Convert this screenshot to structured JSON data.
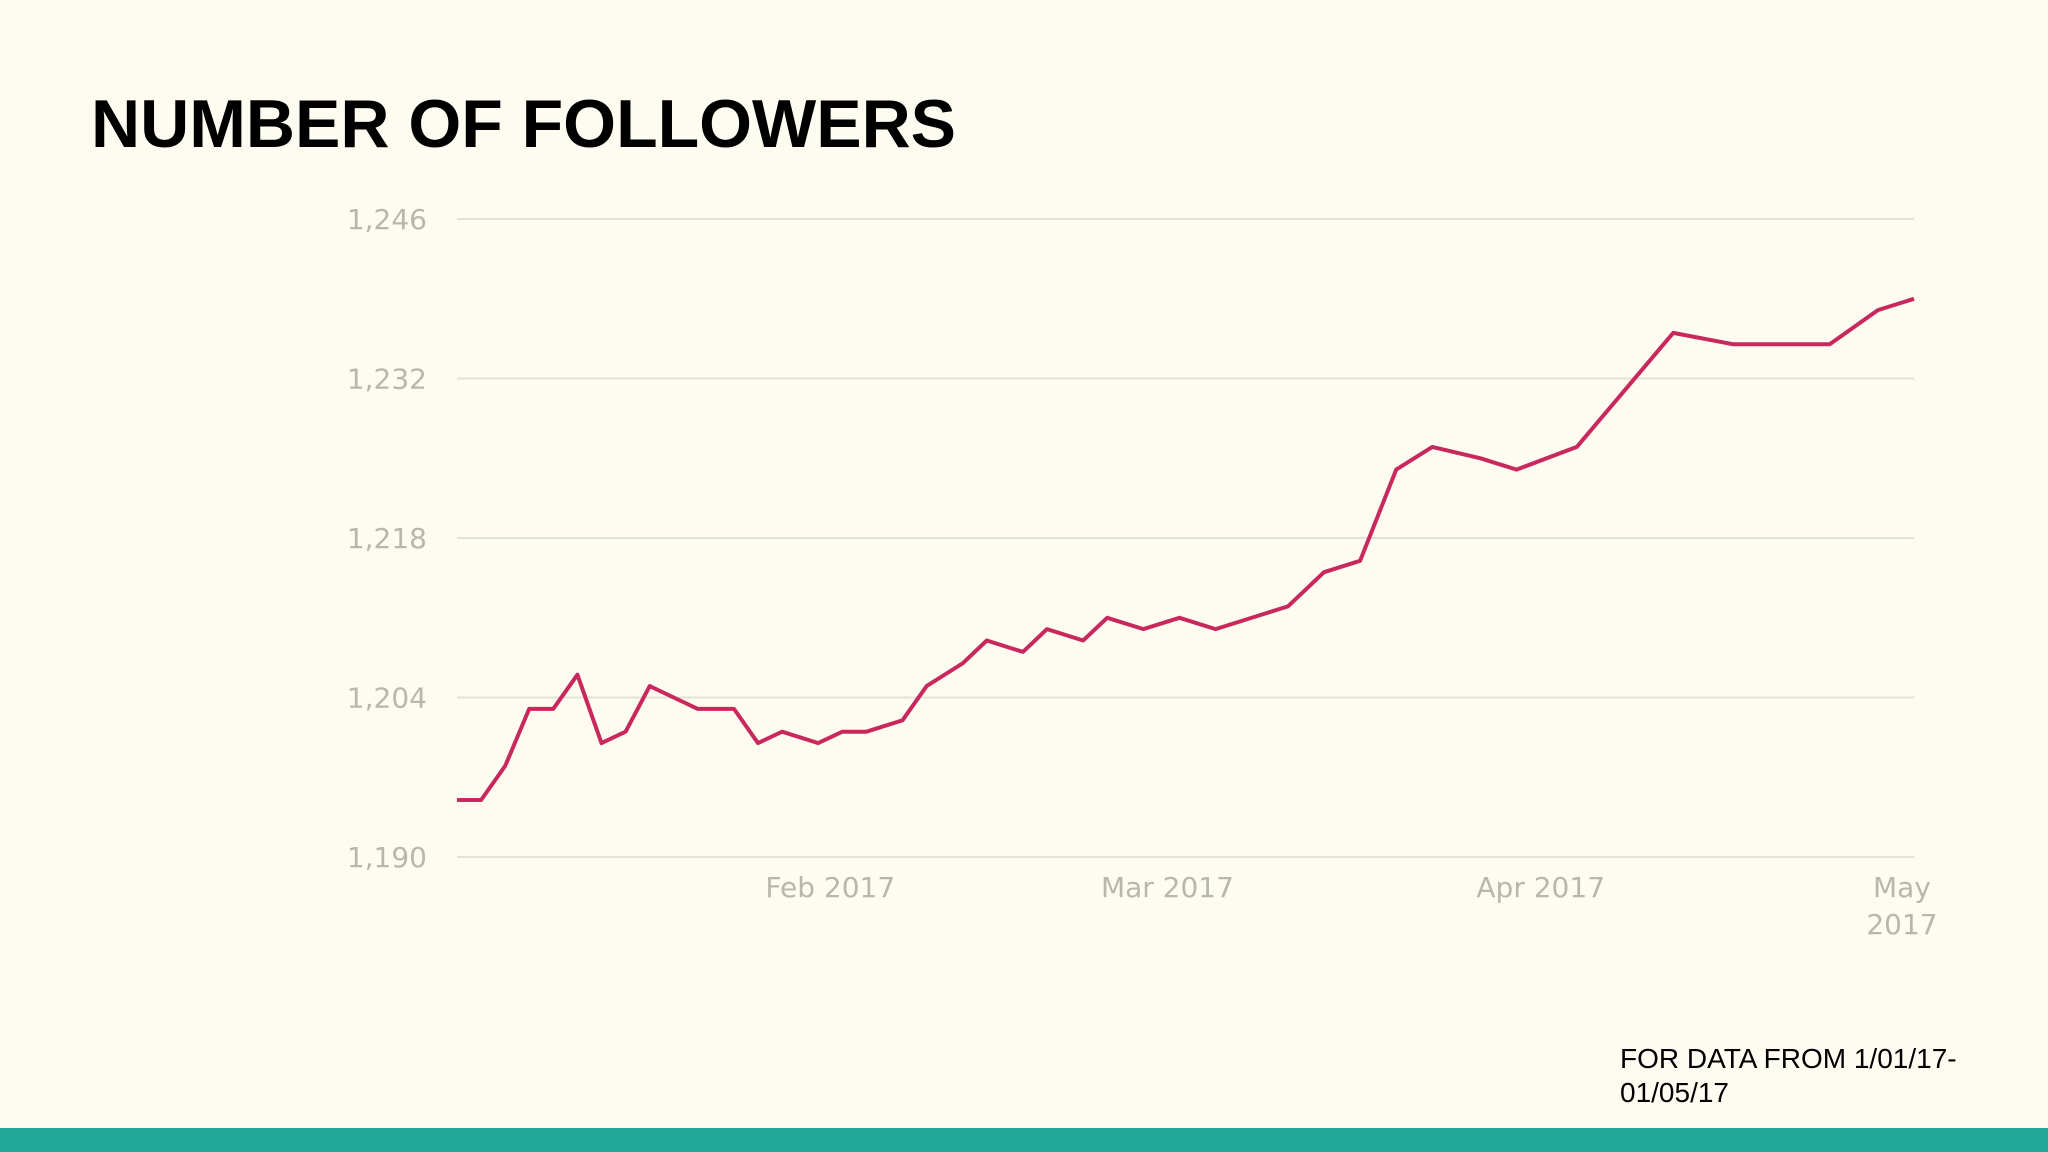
{
  "title": "NUMBER OF FOLLOWERS",
  "footnote": "FOR DATA FROM 1/01/17-01/05/17",
  "colors": {
    "background": "#fefcf0",
    "line": "#c8285e",
    "grid": "#e4e1d8",
    "tick_text": "#b9b6ae",
    "footer_bar": "#22a899"
  },
  "chart_data": {
    "type": "line",
    "title": "",
    "xlabel": "",
    "ylabel": "",
    "ylim": [
      1190,
      1246
    ],
    "yticks": [
      1190,
      1204,
      1218,
      1232,
      1246
    ],
    "ytick_labels": [
      "1,190",
      "1,204",
      "1,218",
      "1,232",
      "1,246"
    ],
    "xlim": [
      "2017-01-01",
      "2017-05-02"
    ],
    "xticks": [
      {
        "date": "2017-02-01",
        "label": [
          "Feb 2017"
        ]
      },
      {
        "date": "2017-03-01",
        "label": [
          "Mar 2017"
        ]
      },
      {
        "date": "2017-04-01",
        "label": [
          "Apr 2017"
        ]
      },
      {
        "date": "2017-05-01",
        "label": [
          "May",
          "2017"
        ]
      }
    ],
    "grid": true,
    "series": [
      {
        "points": [
          [
            "2017-01-01",
            1195
          ],
          [
            "2017-01-03",
            1195
          ],
          [
            "2017-01-05",
            1198
          ],
          [
            "2017-01-07",
            1203
          ],
          [
            "2017-01-09",
            1203
          ],
          [
            "2017-01-11",
            1206
          ],
          [
            "2017-01-13",
            1200
          ],
          [
            "2017-01-15",
            1201
          ],
          [
            "2017-01-17",
            1205
          ],
          [
            "2017-01-19",
            1204
          ],
          [
            "2017-01-21",
            1203
          ],
          [
            "2017-01-24",
            1203
          ],
          [
            "2017-01-26",
            1200
          ],
          [
            "2017-01-28",
            1201
          ],
          [
            "2017-01-31",
            1200
          ],
          [
            "2017-02-02",
            1201
          ],
          [
            "2017-02-04",
            1201
          ],
          [
            "2017-02-07",
            1202
          ],
          [
            "2017-02-09",
            1205
          ],
          [
            "2017-02-12",
            1207
          ],
          [
            "2017-02-14",
            1209
          ],
          [
            "2017-02-17",
            1208
          ],
          [
            "2017-02-19",
            1210
          ],
          [
            "2017-02-22",
            1209
          ],
          [
            "2017-02-24",
            1211
          ],
          [
            "2017-02-27",
            1210
          ],
          [
            "2017-03-02",
            1211
          ],
          [
            "2017-03-05",
            1210
          ],
          [
            "2017-03-11",
            1212
          ],
          [
            "2017-03-14",
            1215
          ],
          [
            "2017-03-17",
            1216
          ],
          [
            "2017-03-20",
            1224
          ],
          [
            "2017-03-23",
            1226
          ],
          [
            "2017-03-27",
            1225
          ],
          [
            "2017-03-30",
            1224
          ],
          [
            "2017-04-04",
            1226
          ],
          [
            "2017-04-12",
            1236
          ],
          [
            "2017-04-17",
            1235
          ],
          [
            "2017-04-25",
            1235
          ],
          [
            "2017-04-29",
            1238
          ],
          [
            "2017-05-02",
            1239
          ]
        ]
      }
    ]
  }
}
